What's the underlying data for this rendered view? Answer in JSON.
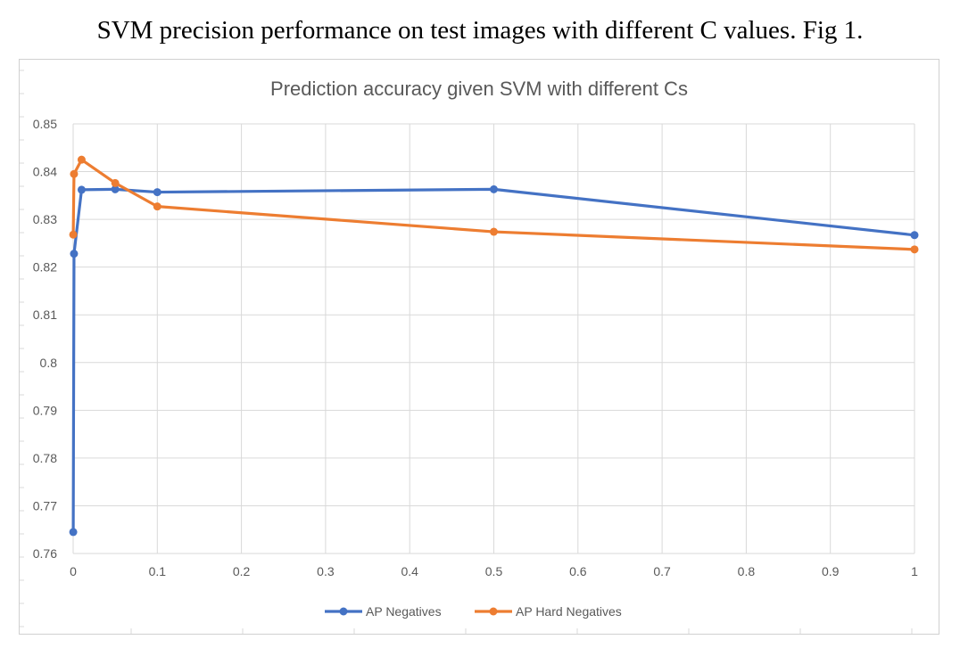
{
  "page": {
    "heading": "SVM precision performance on test images with different C values. Fig 1."
  },
  "chart_data": {
    "type": "line",
    "title": "Prediction accuracy given SVM with different Cs",
    "xlabel": "",
    "ylabel": "",
    "xlim": [
      0,
      1
    ],
    "ylim": [
      0.76,
      0.85
    ],
    "xticks": [
      "0",
      "0.1",
      "0.2",
      "0.3",
      "0.4",
      "0.5",
      "0.6",
      "0.7",
      "0.8",
      "0.9",
      "1"
    ],
    "yticks": [
      "0.76",
      "0.77",
      "0.78",
      "0.79",
      "0.8",
      "0.81",
      "0.82",
      "0.83",
      "0.84",
      "0.85"
    ],
    "grid": true,
    "legend_position": "bottom",
    "series": [
      {
        "name": "AP Negatives",
        "color": "#4472c4",
        "x": [
          0.0001,
          0.001,
          0.01,
          0.05,
          0.1,
          0.5,
          1
        ],
        "y": [
          0.7645,
          0.8228,
          0.8362,
          0.8363,
          0.8357,
          0.8363,
          0.8267
        ]
      },
      {
        "name": "AP Hard Negatives",
        "color": "#ed7d31",
        "x": [
          0.0001,
          0.001,
          0.01,
          0.05,
          0.1,
          0.5,
          1
        ],
        "y": [
          0.8268,
          0.8395,
          0.8425,
          0.8376,
          0.8327,
          0.8274,
          0.8237
        ]
      }
    ]
  }
}
